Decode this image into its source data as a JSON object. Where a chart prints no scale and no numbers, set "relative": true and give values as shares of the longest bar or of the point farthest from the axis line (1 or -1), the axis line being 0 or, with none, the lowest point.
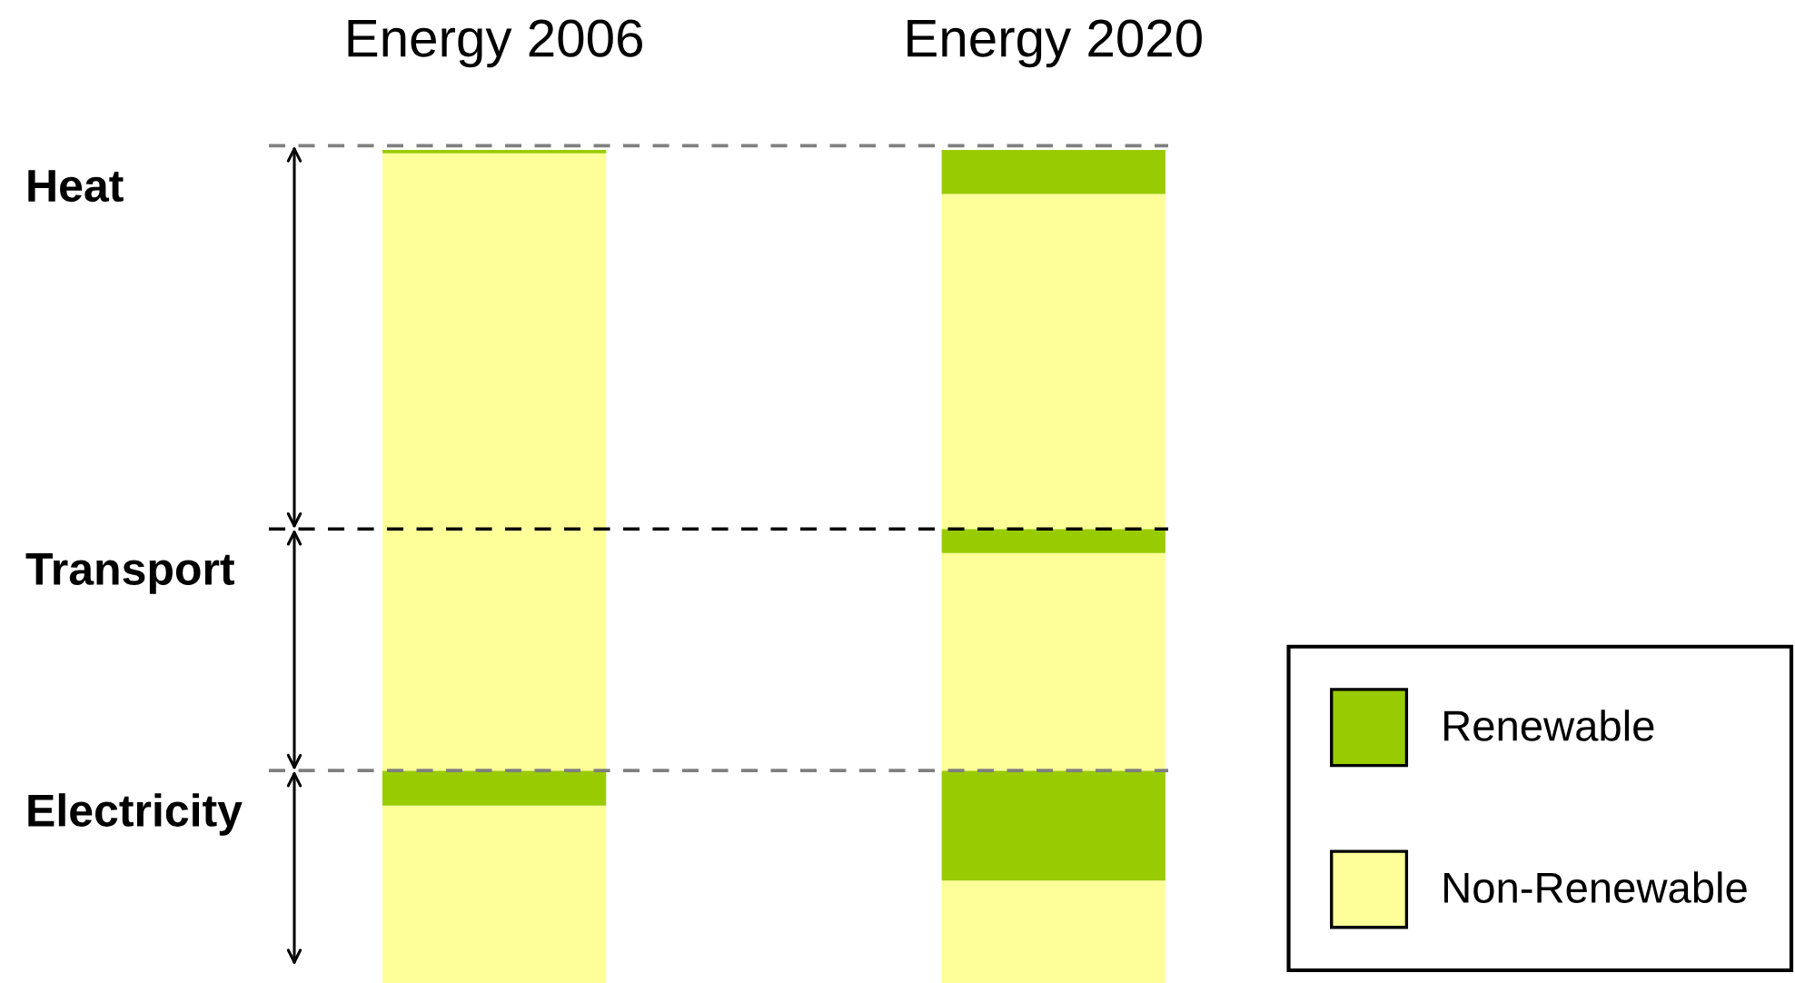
{
  "chart_data": {
    "type": "bar",
    "relative": true,
    "stacked": true,
    "categories": [
      "Energy 2006",
      "Energy 2020"
    ],
    "series": [
      {
        "name": "Non-Renewable",
        "color": "#ffff99",
        "values": [
          0.213,
          0.123
        ]
      },
      {
        "name": "Renewable",
        "color": "#99cc00",
        "values": [
          0.042,
          0.132
        ]
      },
      {
        "color": "#ffff99",
        "values": [
          0.29,
          0.261
        ]
      },
      {
        "color": "#99cc00",
        "values": [
          null,
          0.029
        ]
      },
      {
        "color": "#ffff99",
        "values": [
          0.451,
          0.402
        ]
      },
      {
        "color": "#99cc00",
        "values": [
          0.004,
          0.053
        ]
      }
    ],
    "ref_lines": [
      {
        "axis": "y",
        "value": 1.005,
        "color": "#808080",
        "line_style": "dashed"
      },
      {
        "axis": "y",
        "value": 0.545,
        "color": "#000000",
        "line_style": "dashed"
      },
      {
        "axis": "y",
        "value": 0.255,
        "color": "#808080",
        "line_style": "dashed"
      }
    ],
    "annotations": [
      "Heat",
      "Transport",
      "Electricity"
    ],
    "legend": "bottom right"
  }
}
